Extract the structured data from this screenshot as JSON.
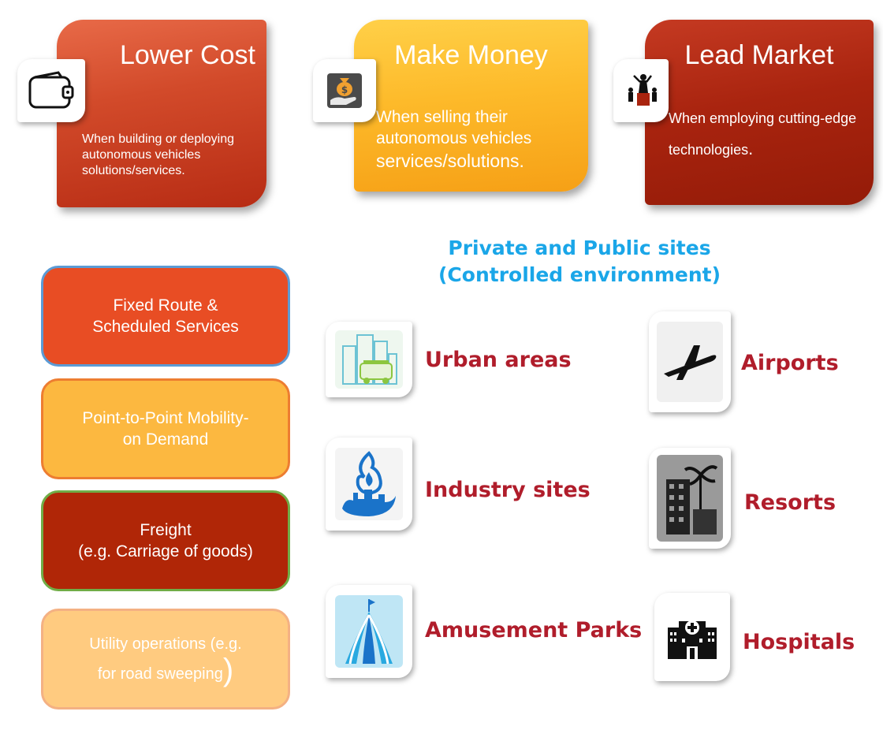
{
  "cards": [
    {
      "title": "Lower Cost",
      "description": "When building or deploying autonomous vehicles solutions/services.",
      "icon": "wallet-icon",
      "color": "#d24a2a"
    },
    {
      "title": "Make Money",
      "description_small": "When selling their autonomous vehicles",
      "description_large": "services/solutions.",
      "icon": "money-bag-hand-icon",
      "color": "#fdba2a"
    },
    {
      "title": "Lead Market",
      "description": "When employing cutting-edge technologies",
      "description_end": ".",
      "icon": "leader-group-icon",
      "color": "#a9240f"
    }
  ],
  "sites_heading": {
    "line1": "Private and Public sites",
    "line2": "(Controlled environment)"
  },
  "services": [
    {
      "line1": "Fixed Route &",
      "line2": "Scheduled Services"
    },
    {
      "line1": "Point-to-Point Mobility-",
      "line2": "on Demand"
    },
    {
      "line1": "Freight",
      "line2": "(e.g. Carriage of goods)"
    },
    {
      "line1": "Utility operations (e.g.",
      "line2": "for road sweeping",
      "paren": ")"
    }
  ],
  "sites": [
    {
      "label": "Urban areas",
      "icon": "urban-buildings-icon"
    },
    {
      "label": "Airports",
      "icon": "airplane-icon"
    },
    {
      "label": "Industry sites",
      "icon": "industry-flame-icon"
    },
    {
      "label": "Resorts",
      "icon": "resort-palm-icon"
    },
    {
      "label": "Amusement Parks",
      "icon": "circus-tent-icon"
    },
    {
      "label": "Hospitals",
      "icon": "hospital-icon"
    }
  ],
  "colors": {
    "heading": "#1aa6e8",
    "site_label": "#b01d2b"
  }
}
